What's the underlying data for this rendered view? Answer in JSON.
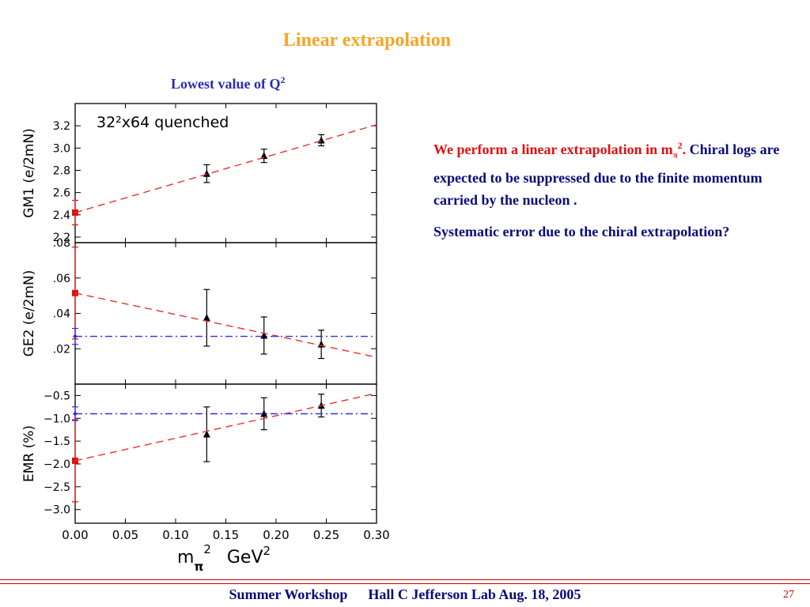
{
  "slide": {
    "title": "Linear extrapolation",
    "subtitle_text": "Lowest value of Q",
    "subtitle_sup": "2",
    "para1_red": "We perform a linear extrapolation in m",
    "para1_red_sub": "π",
    "para1_red_sup": "2",
    "para1_red_end": ".",
    "para1_blue": "Chiral logs are expected to be suppressed due to the finite momentum carried by the nucleon .",
    "para2": "Systematic error due to the chiral extrapolation?",
    "footer_left": "Summer Workshop",
    "footer_right": "Hall C Jefferson Lab Aug. 18, 2005",
    "page_number": "27"
  },
  "colors": {
    "title": "#f5a623",
    "subtitle": "#2a2ab8",
    "body_text": "#0a0a7a",
    "highlight": "#e01010",
    "fit_line": "#e83030",
    "constant_line": "#3030e0",
    "data_points": "#000000",
    "footer_rule": "#c80000"
  },
  "chart_data": [
    {
      "type": "scatter",
      "title": "",
      "annotation": "32²x64  quenched",
      "ylabel": "G_M1 (e/2m_N)",
      "xlim": [
        0.0,
        0.3
      ],
      "ylim": [
        2.15,
        3.4
      ],
      "yticks": [
        "2.2",
        "2.4",
        "2.6",
        "2.8",
        "3.0",
        "3.2"
      ],
      "series": [
        {
          "kind": "data",
          "x": [
            0.131,
            0.188,
            0.245
          ],
          "y": [
            2.77,
            2.93,
            3.07
          ],
          "err": [
            0.08,
            0.06,
            0.05
          ]
        },
        {
          "kind": "extrapolated",
          "x": [
            0.0
          ],
          "y": [
            2.42
          ],
          "err": [
            0.11
          ]
        },
        {
          "kind": "linear-fit",
          "x": [
            0.0,
            0.3
          ],
          "y": [
            2.42,
            3.21
          ]
        }
      ]
    },
    {
      "type": "scatter",
      "title": "",
      "ylabel": "G_E2 (e/2m_N)",
      "xlim": [
        0.0,
        0.3
      ],
      "ylim": [
        0.0,
        0.08
      ],
      "yticks": [
        ".02",
        ".04",
        ".06",
        ".08"
      ],
      "series": [
        {
          "kind": "data",
          "x": [
            0.131,
            0.188,
            0.245
          ],
          "y": [
            0.0375,
            0.0275,
            0.0225
          ],
          "err": [
            0.016,
            0.0105,
            0.008
          ]
        },
        {
          "kind": "extrapolated",
          "x": [
            0.0
          ],
          "y": [
            0.0515
          ],
          "err": [
            0.026
          ]
        },
        {
          "kind": "constant",
          "x": [
            0.0
          ],
          "y": [
            0.027
          ],
          "err": [
            0.0045
          ]
        },
        {
          "kind": "linear-fit",
          "x": [
            0.0,
            0.3
          ],
          "y": [
            0.0515,
            0.0152
          ]
        },
        {
          "kind": "constant-fit",
          "x": [
            0.0,
            0.3
          ],
          "y": [
            0.027,
            0.027
          ]
        }
      ]
    },
    {
      "type": "scatter",
      "title": "",
      "ylabel": "EMR (%)",
      "xlabel": "m_π² GeV²",
      "xlim": [
        0.0,
        0.3
      ],
      "ylim": [
        -3.3,
        -0.25
      ],
      "xticks": [
        "0.00",
        "0.05",
        "0.10",
        "0.15",
        "0.20",
        "0.25",
        "0.30"
      ],
      "yticks": [
        "−0.5",
        "−1.0",
        "−1.5",
        "−2.0",
        "−2.5",
        "−3.0"
      ],
      "series": [
        {
          "kind": "data",
          "x": [
            0.131,
            0.188,
            0.245
          ],
          "y": [
            -1.35,
            -0.9,
            -0.72
          ],
          "err": [
            0.6,
            0.35,
            0.25
          ]
        },
        {
          "kind": "extrapolated",
          "x": [
            0.0
          ],
          "y": [
            -1.93
          ],
          "err": [
            0.9
          ]
        },
        {
          "kind": "constant",
          "x": [
            0.0
          ],
          "y": [
            -0.9
          ],
          "err": [
            0.15
          ]
        },
        {
          "kind": "linear-fit",
          "x": [
            0.0,
            0.3
          ],
          "y": [
            -1.93,
            -0.45
          ]
        },
        {
          "kind": "constant-fit",
          "x": [
            0.0,
            0.3
          ],
          "y": [
            -0.9,
            -0.9
          ]
        }
      ]
    }
  ]
}
